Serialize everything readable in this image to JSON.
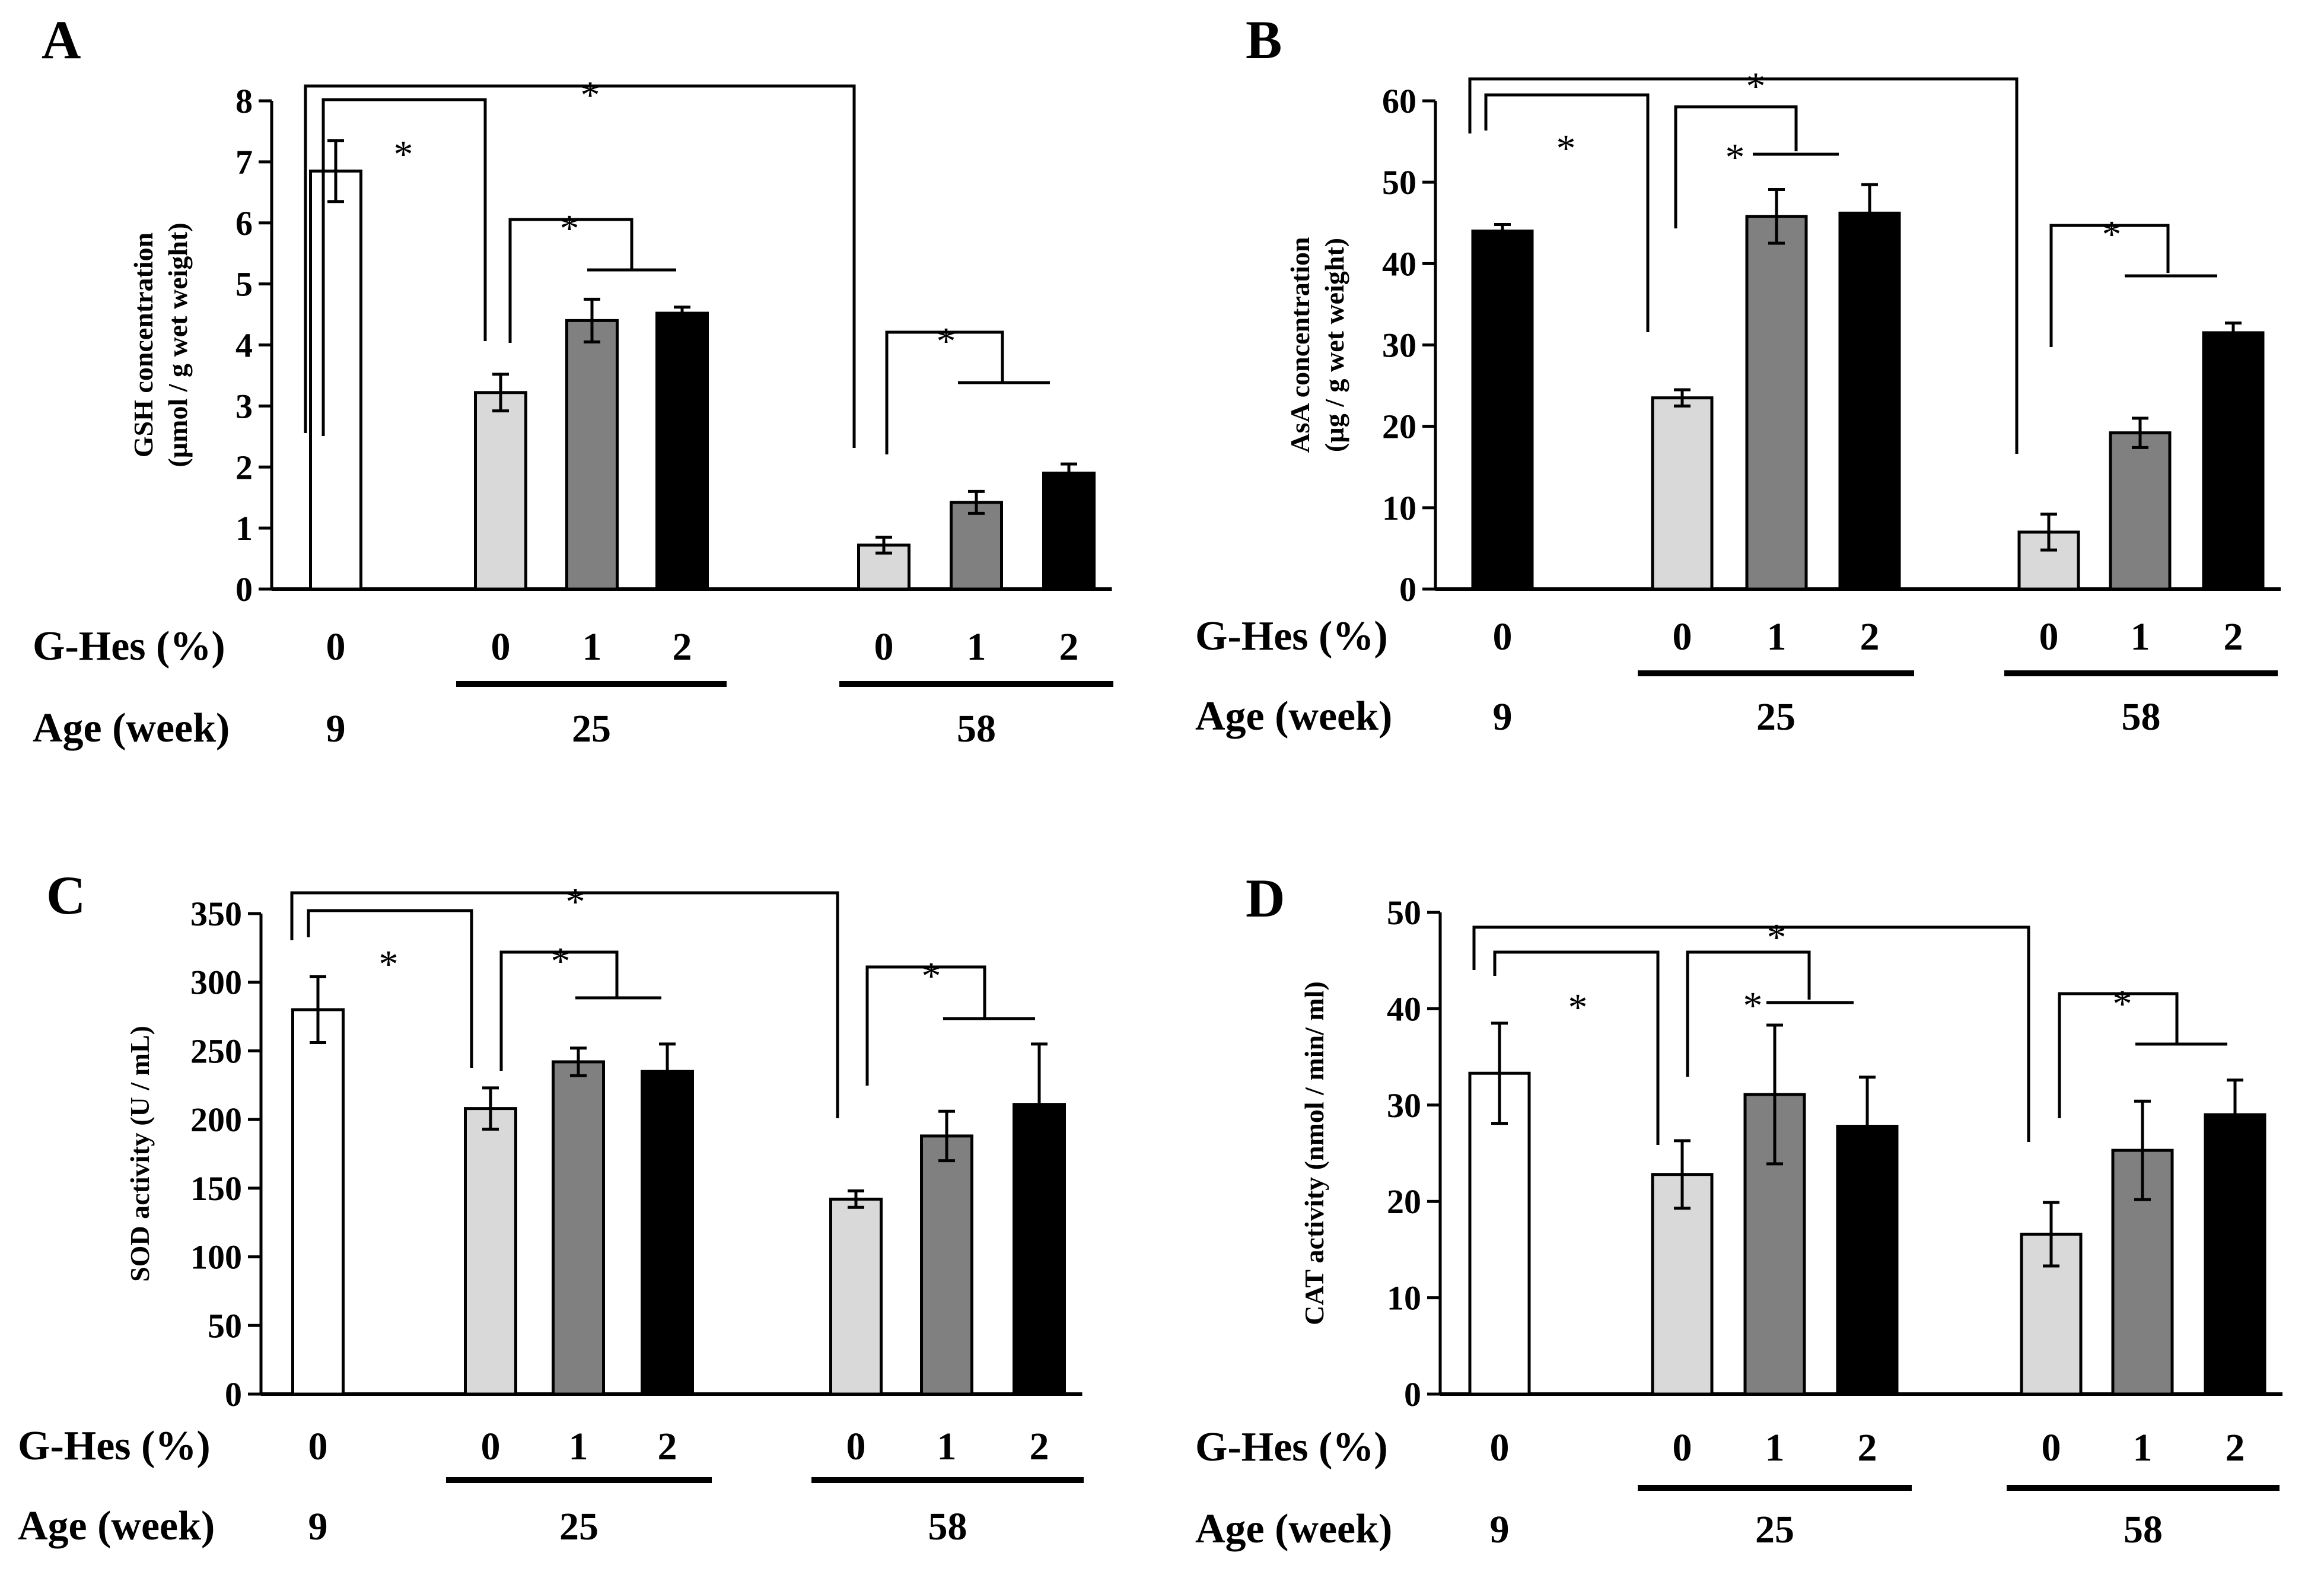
{
  "figure": {
    "row_labels": {
      "treatment": "G-Hes (%)",
      "age": "Age (week)"
    },
    "significance_mark": "*"
  },
  "chart_data": [
    {
      "panel": "A",
      "type": "bar",
      "ylabel_lines": [
        "GSH concentration",
        "(µmol / g wet weight)"
      ],
      "ylim": [
        0,
        8
      ],
      "ytick_step": 1,
      "ytick_labels": [
        "0",
        "1",
        "2",
        "3",
        "4",
        "5",
        "6",
        "7",
        "8"
      ],
      "grid": false,
      "categories": [
        {
          "dose": "0",
          "age": "9",
          "value": 6.85,
          "err": 0.5,
          "fill": "#ffffff"
        },
        {
          "dose": "0",
          "age": "25",
          "value": 3.22,
          "err": 0.3,
          "fill": "#d9d9d9"
        },
        {
          "dose": "1",
          "age": "25",
          "value": 4.4,
          "err": 0.35,
          "fill": "#808080"
        },
        {
          "dose": "2",
          "age": "25",
          "value": 4.52,
          "err": 0.1,
          "fill": "#000000"
        },
        {
          "dose": "0",
          "age": "58",
          "value": 0.72,
          "err": 0.13,
          "fill": "#d9d9d9"
        },
        {
          "dose": "1",
          "age": "58",
          "value": 1.42,
          "err": 0.18,
          "fill": "#808080"
        },
        {
          "dose": "2",
          "age": "58",
          "value": 1.9,
          "err": 0.15,
          "fill": "#000000"
        }
      ],
      "age_groups": [
        {
          "label": "9",
          "bars": [
            0
          ]
        },
        {
          "label": "25",
          "bars": [
            1,
            2,
            3
          ]
        },
        {
          "label": "58",
          "bars": [
            4,
            5,
            6
          ]
        }
      ]
    },
    {
      "panel": "B",
      "type": "bar",
      "ylabel_lines": [
        "AsA concentration",
        "(µg /  g wet weight)"
      ],
      "ylim": [
        0,
        60
      ],
      "ytick_step": 10,
      "ytick_labels": [
        "0",
        "10",
        "20",
        "30",
        "40",
        "50",
        "60"
      ],
      "grid": false,
      "categories": [
        {
          "dose": "0",
          "age": "9",
          "value": 44,
          "err": 0.8,
          "fill": "#000000"
        },
        {
          "dose": "0",
          "age": "25",
          "value": 23.5,
          "err": 1.0,
          "fill": "#d9d9d9"
        },
        {
          "dose": "1",
          "age": "25",
          "value": 45.8,
          "err": 3.3,
          "fill": "#808080"
        },
        {
          "dose": "2",
          "age": "25",
          "value": 46.2,
          "err": 3.5,
          "fill": "#000000"
        },
        {
          "dose": "0",
          "age": "58",
          "value": 7,
          "err": 2.2,
          "fill": "#d9d9d9"
        },
        {
          "dose": "1",
          "age": "58",
          "value": 19.2,
          "err": 1.8,
          "fill": "#808080"
        },
        {
          "dose": "2",
          "age": "58",
          "value": 31.5,
          "err": 1.2,
          "fill": "#000000"
        }
      ],
      "age_groups": [
        {
          "label": "9",
          "bars": [
            0
          ]
        },
        {
          "label": "25",
          "bars": [
            1,
            2,
            3
          ]
        },
        {
          "label": "58",
          "bars": [
            4,
            5,
            6
          ]
        }
      ]
    },
    {
      "panel": "C",
      "type": "bar",
      "ylabel_lines": [
        "SOD activity  (U / mL)"
      ],
      "ylim": [
        0,
        350
      ],
      "ytick_step": 50,
      "ytick_labels": [
        "0",
        "50",
        "100",
        "150",
        "200",
        "250",
        "300",
        "350"
      ],
      "grid": false,
      "categories": [
        {
          "dose": "0",
          "age": "9",
          "value": 280,
          "err": 24,
          "fill": "#ffffff"
        },
        {
          "dose": "0",
          "age": "25",
          "value": 208,
          "err": 15,
          "fill": "#d9d9d9"
        },
        {
          "dose": "1",
          "age": "25",
          "value": 242,
          "err": 10,
          "fill": "#808080"
        },
        {
          "dose": "2",
          "age": "25",
          "value": 235,
          "err": 20,
          "fill": "#000000"
        },
        {
          "dose": "0",
          "age": "58",
          "value": 142,
          "err": 6,
          "fill": "#d9d9d9"
        },
        {
          "dose": "1",
          "age": "58",
          "value": 188,
          "err": 18,
          "fill": "#808080"
        },
        {
          "dose": "2",
          "age": "58",
          "value": 211,
          "err": 44,
          "fill": "#000000"
        }
      ],
      "age_groups": [
        {
          "label": "9",
          "bars": [
            0
          ]
        },
        {
          "label": "25",
          "bars": [
            1,
            2,
            3
          ]
        },
        {
          "label": "58",
          "bars": [
            4,
            5,
            6
          ]
        }
      ]
    },
    {
      "panel": "D",
      "type": "bar",
      "ylabel_lines": [
        "CAT activity (nmol / min/ ml)"
      ],
      "ylim": [
        0,
        50
      ],
      "ytick_step": 10,
      "ytick_labels": [
        "0",
        "10",
        "20",
        "30",
        "40",
        "50"
      ],
      "grid": false,
      "categories": [
        {
          "dose": "0",
          "age": "9",
          "value": 33.3,
          "err": 5.2,
          "fill": "#ffffff"
        },
        {
          "dose": "0",
          "age": "25",
          "value": 22.8,
          "err": 3.5,
          "fill": "#d9d9d9"
        },
        {
          "dose": "1",
          "age": "25",
          "value": 31.1,
          "err": 7.2,
          "fill": "#808080"
        },
        {
          "dose": "2",
          "age": "25",
          "value": 27.8,
          "err": 5.1,
          "fill": "#000000"
        },
        {
          "dose": "0",
          "age": "58",
          "value": 16.6,
          "err": 3.3,
          "fill": "#d9d9d9"
        },
        {
          "dose": "1",
          "age": "58",
          "value": 25.3,
          "err": 5.1,
          "fill": "#808080"
        },
        {
          "dose": "2",
          "age": "58",
          "value": 29,
          "err": 3.6,
          "fill": "#000000"
        }
      ],
      "age_groups": [
        {
          "label": "9",
          "bars": [
            0
          ]
        },
        {
          "label": "25",
          "bars": [
            1,
            2,
            3
          ]
        },
        {
          "label": "58",
          "bars": [
            4,
            5,
            6
          ]
        }
      ]
    }
  ]
}
